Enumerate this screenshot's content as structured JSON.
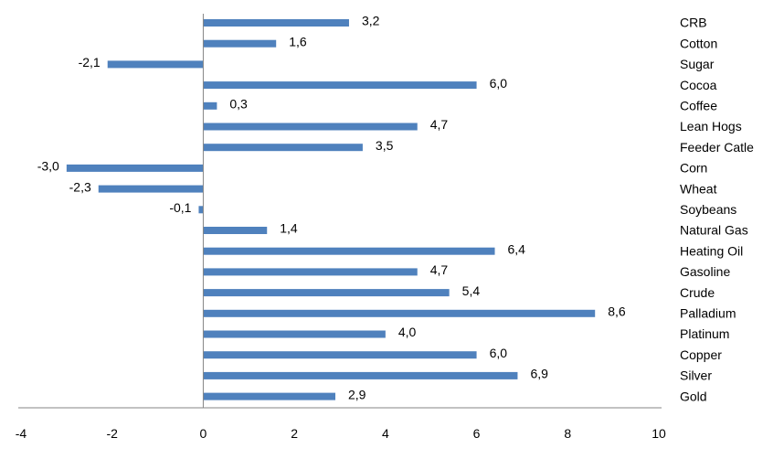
{
  "chart_data": {
    "type": "bar",
    "orientation": "horizontal",
    "categories": [
      "CRB",
      "Cotton",
      "Sugar",
      "Cocoa",
      "Coffee",
      "Lean Hogs",
      "Feeder Catle",
      "Corn",
      "Wheat",
      "Soybeans",
      "Natural Gas",
      "Heating Oil",
      "Gasoline",
      "Crude",
      "Palladium",
      "Platinum",
      "Copper",
      "Silver",
      "Gold"
    ],
    "values": [
      3.2,
      1.6,
      -2.1,
      6.0,
      0.3,
      4.7,
      3.5,
      -3.0,
      -2.3,
      -0.1,
      1.4,
      6.4,
      4.7,
      5.4,
      8.6,
      4.0,
      6.0,
      6.9,
      2.9
    ],
    "value_labels": [
      "3,2",
      "1,6",
      "-2,1",
      "6,0",
      "0,3",
      "4,7",
      "3,5",
      "-3,0",
      "-2,3",
      "-0,1",
      "1,4",
      "6,4",
      "4,7",
      "5,4",
      "8,6",
      "4,0",
      "6,0",
      "6,9",
      "2,9"
    ],
    "xlim": [
      -4,
      10
    ],
    "x_ticks": [
      "-4",
      "-2",
      "0",
      "2",
      "4",
      "6",
      "8",
      "10"
    ],
    "title": "",
    "xlabel": "",
    "ylabel": "",
    "grid": false,
    "legend": "none",
    "bar_color": "#4F81BD"
  }
}
